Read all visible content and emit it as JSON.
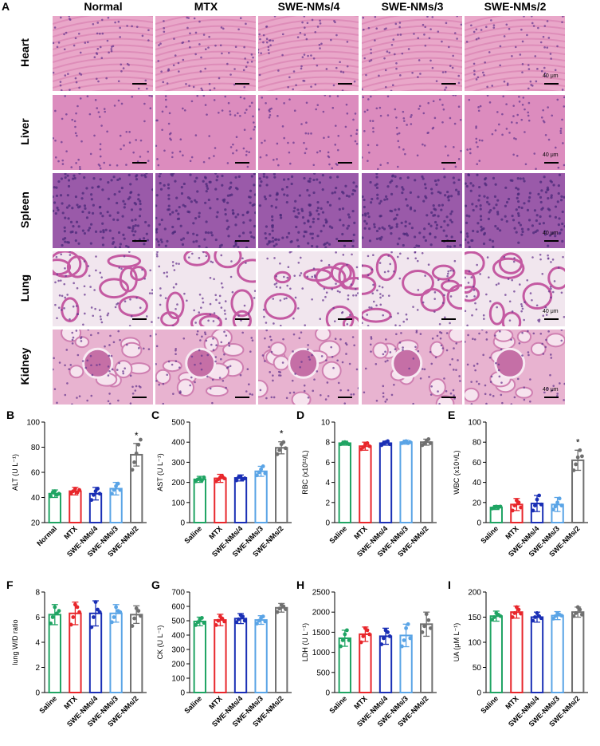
{
  "histology": {
    "panel_letter": "A",
    "columns": [
      "Normal",
      "MTX",
      "SWE-NMs/4",
      "SWE-NMs/3",
      "SWE-NMs/2"
    ],
    "rows": [
      "Heart",
      "Liver",
      "Spleen",
      "Lung",
      "Kidney"
    ],
    "scale_label": "40 μm",
    "tissue_colors": {
      "Heart": [
        "#e9a7c9",
        "#d982b2"
      ],
      "Liver": [
        "#dc8cbe",
        "#c86aa8"
      ],
      "Spleen": [
        "#9a5aa9",
        "#7e4496"
      ],
      "Lung": [
        "#f1e6ee",
        "#c45aa2"
      ],
      "Kidney": [
        "#e8b3d0",
        "#cf7fb1"
      ]
    }
  },
  "colors": {
    "green": "#1fa463",
    "red": "#e8262b",
    "blue": "#1a2fb5",
    "lightblue": "#5aa4e6",
    "gray": "#707070"
  },
  "chart_data": [
    {
      "letter": "B",
      "type": "bar",
      "ylabel": "ALT (U L⁻¹)",
      "ylim": [
        20,
        100
      ],
      "ticks": [
        20,
        40,
        60,
        80,
        100
      ],
      "categories": [
        "Normal",
        "MTX",
        "SWE-NMs/4",
        "SWE-NMs/3",
        "SWE-NMs/2"
      ],
      "values": [
        43,
        45,
        43,
        47,
        74
      ],
      "errors": [
        3,
        3,
        5,
        5,
        9
      ],
      "points": [
        [
          41,
          44,
          45,
          42,
          43
        ],
        [
          43,
          45,
          47,
          44,
          46
        ],
        [
          38,
          42,
          45,
          47,
          43
        ],
        [
          43,
          46,
          49,
          51,
          46
        ],
        [
          62,
          68,
          75,
          82,
          86
        ]
      ],
      "star": "*",
      "star_index": 4
    },
    {
      "letter": "C",
      "type": "bar",
      "ylabel": "AST (U L⁻¹)",
      "ylim": [
        0,
        500
      ],
      "ticks": [
        0,
        100,
        200,
        300,
        400,
        500
      ],
      "categories": [
        "Saline",
        "MTX",
        "SWE-NMs/4",
        "SWE-NMs/3",
        "SWE-NMs/2"
      ],
      "values": [
        215,
        220,
        222,
        255,
        372
      ],
      "errors": [
        15,
        20,
        15,
        25,
        30
      ],
      "points": [
        [
          205,
          215,
          220,
          210,
          225
        ],
        [
          205,
          215,
          225,
          230,
          220
        ],
        [
          210,
          225,
          230,
          215,
          220
        ],
        [
          235,
          250,
          265,
          280,
          245
        ],
        [
          340,
          360,
          390,
          400,
          370
        ]
      ],
      "star": "*",
      "star_index": 4
    },
    {
      "letter": "D",
      "type": "bar",
      "ylabel": "RBC (x10¹²/L)",
      "ylim": [
        0,
        10
      ],
      "ticks": [
        0,
        2,
        4,
        6,
        8,
        10
      ],
      "categories": [
        "Saline",
        "MTX",
        "SWE-NMs/4",
        "SWE-NMs/3",
        "SWE-NMs/2"
      ],
      "values": [
        7.9,
        7.6,
        7.9,
        8.0,
        8.0
      ],
      "errors": [
        0.2,
        0.4,
        0.2,
        0.2,
        0.3
      ],
      "points": [
        [
          7.8,
          7.9,
          8.0,
          7.9,
          7.8
        ],
        [
          7.3,
          7.5,
          7.8,
          7.9,
          7.6
        ],
        [
          7.7,
          7.9,
          8.0,
          8.1,
          7.8
        ],
        [
          7.9,
          8.0,
          8.1,
          7.9,
          8.0
        ],
        [
          7.7,
          7.9,
          8.1,
          8.3,
          7.9
        ]
      ],
      "star": "",
      "star_index": -1
    },
    {
      "letter": "E",
      "type": "bar",
      "ylabel": "WBC (x10⁹/L)",
      "ylim": [
        0,
        100
      ],
      "ticks": [
        0,
        20,
        40,
        60,
        80,
        100
      ],
      "categories": [
        "Saline",
        "MTX",
        "SWE-NMs/4",
        "SWE-NMs/3",
        "SWE-NMs/2"
      ],
      "values": [
        15,
        18,
        19,
        18,
        62
      ],
      "errors": [
        2,
        6,
        8,
        7,
        10
      ],
      "points": [
        [
          14,
          15,
          16,
          15,
          16
        ],
        [
          12,
          17,
          22,
          20,
          15
        ],
        [
          12,
          17,
          23,
          27,
          18
        ],
        [
          13,
          16,
          20,
          24,
          17
        ],
        [
          52,
          58,
          65,
          72,
          66
        ]
      ],
      "star": "*",
      "star_index": 4
    },
    {
      "letter": "F",
      "type": "bar",
      "ylabel": "lung W/D ratio",
      "ylim": [
        0,
        8
      ],
      "ticks": [
        0,
        2,
        4,
        6,
        8
      ],
      "categories": [
        "Saline",
        "MTX",
        "SWE-NMs/4",
        "SWE-NMs/3",
        "SWE-NMs/2"
      ],
      "values": [
        6.2,
        6.3,
        6.3,
        6.3,
        6.2
      ],
      "errors": [
        0.8,
        0.9,
        1.0,
        0.7,
        0.7
      ],
      "points": [
        [
          5.5,
          6.0,
          6.8,
          6.3,
          6.5
        ],
        [
          5.4,
          6.0,
          7.0,
          6.8,
          6.4
        ],
        [
          5.2,
          6.0,
          7.2,
          6.6,
          6.4
        ],
        [
          5.6,
          6.0,
          6.8,
          6.5,
          6.4
        ],
        [
          5.3,
          5.9,
          6.7,
          6.5,
          6.1
        ]
      ],
      "star": "",
      "star_index": -1
    },
    {
      "letter": "G",
      "type": "bar",
      "ylabel": "CK (U L⁻¹)",
      "ylim": [
        0,
        700
      ],
      "ticks": [
        0,
        100,
        200,
        300,
        400,
        500,
        600,
        700
      ],
      "categories": [
        "Saline",
        "MTX",
        "SWE-NMs/4",
        "SWE-NMs/3",
        "SWE-NMs/2"
      ],
      "values": [
        495,
        505,
        515,
        505,
        590
      ],
      "errors": [
        30,
        40,
        35,
        30,
        30
      ],
      "points": [
        [
          470,
          490,
          510,
          520,
          485
        ],
        [
          470,
          500,
          530,
          515,
          495
        ],
        [
          490,
          510,
          540,
          530,
          500
        ],
        [
          480,
          500,
          520,
          530,
          495
        ],
        [
          560,
          585,
          610,
          600,
          580
        ]
      ],
      "star": "",
      "star_index": -1
    },
    {
      "letter": "H",
      "type": "bar",
      "ylabel": "LDH (U L⁻¹)",
      "ylim": [
        0,
        2500
      ],
      "ticks": [
        0,
        500,
        1000,
        1500,
        2000,
        2500
      ],
      "categories": [
        "Saline",
        "MTX",
        "SWE-NMs/4",
        "SWE-NMs/3",
        "SWE-NMs/2"
      ],
      "values": [
        1350,
        1450,
        1400,
        1420,
        1700
      ],
      "errors": [
        200,
        180,
        200,
        280,
        300
      ],
      "points": [
        [
          1150,
          1300,
          1450,
          1550,
          1300
        ],
        [
          1250,
          1400,
          1600,
          1550,
          1450
        ],
        [
          1200,
          1350,
          1550,
          1500,
          1400
        ],
        [
          1150,
          1300,
          1600,
          1700,
          1350
        ],
        [
          1500,
          1650,
          1950,
          1800,
          1600
        ]
      ],
      "star": "",
      "star_index": -1
    },
    {
      "letter": "I",
      "type": "bar",
      "ylabel": "UA (μM L⁻¹)",
      "ylim": [
        0,
        200
      ],
      "ticks": [
        0,
        50,
        100,
        150,
        200
      ],
      "categories": [
        "Saline",
        "MTX",
        "SWE-NMs/4",
        "SWE-NMs/3",
        "SWE-NMs/2"
      ],
      "values": [
        152,
        160,
        150,
        153,
        160
      ],
      "errors": [
        10,
        12,
        10,
        8,
        10
      ],
      "points": [
        [
          145,
          150,
          158,
          155,
          152
        ],
        [
          150,
          158,
          170,
          165,
          157
        ],
        [
          143,
          150,
          158,
          152,
          148
        ],
        [
          147,
          152,
          158,
          155,
          153
        ],
        [
          152,
          158,
          170,
          165,
          155
        ]
      ],
      "star": "",
      "star_index": -1
    }
  ]
}
